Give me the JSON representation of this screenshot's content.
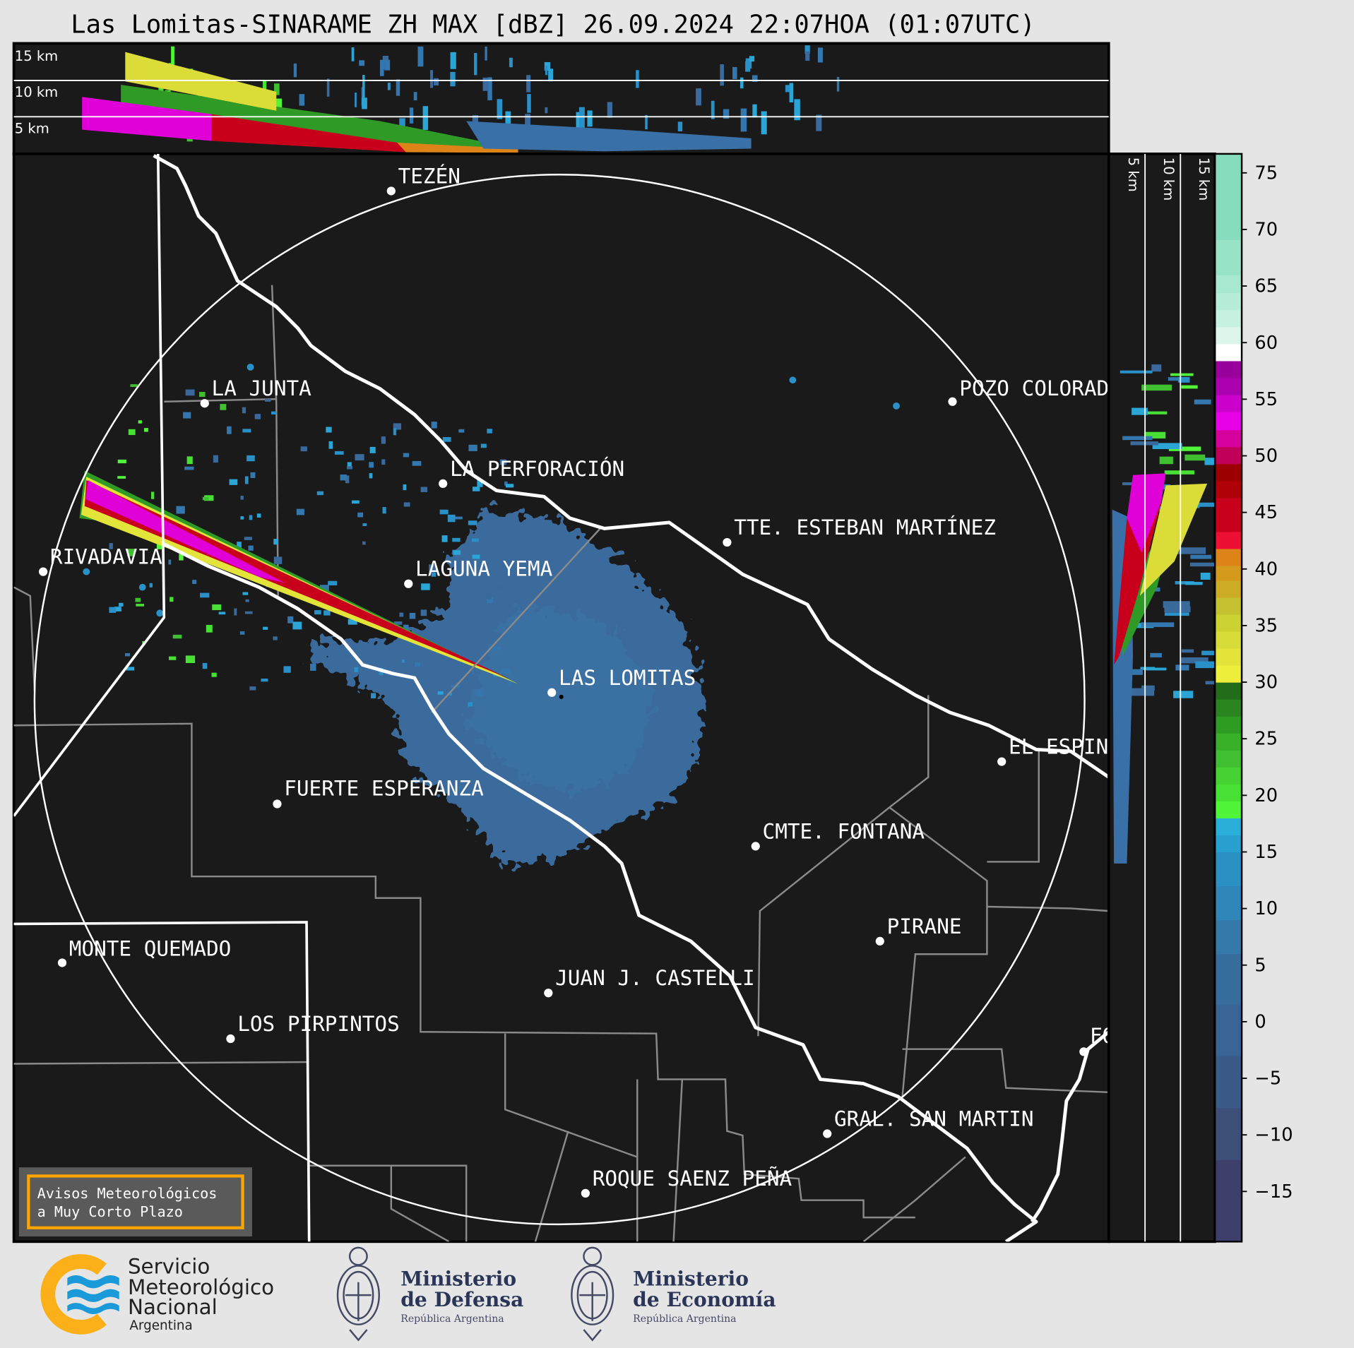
{
  "title": "Las Lomitas-SINARAME ZH MAX [dBZ] 26.09.2024 22:07HOA (01:07UTC)",
  "top_section": {
    "labels": [
      "15 km",
      "10 km",
      "5 km"
    ]
  },
  "side_section": {
    "labels": [
      "5 km",
      "10 km",
      "15 km"
    ]
  },
  "map": {
    "background": "#1a1a1a",
    "towns": [
      "TEZÉN",
      "LA JUNTA",
      "POZO COLORAD",
      "LA PERFORACIÓN",
      "TTE. ESTEBAN MARTÍNEZ",
      "RIVADAVIA",
      "LAGUNA YEMA",
      "LAS LOMITAS",
      "EL ESPIN",
      "FUERTE ESPERANZA",
      "CMTE. FONTANA",
      "PIRANE",
      "MONTE QUEMADO",
      "JUAN J. CASTELLI",
      "LOS PIRPINTOS",
      "FO",
      "GRAL. SAN MARTIN",
      "ROQUE SAENZ PEÑA"
    ]
  },
  "alert_box": {
    "line1": "Avisos Meteorológicos",
    "line2": "a Muy Corto Plazo",
    "accent": "#ffa500"
  },
  "colorbar": {
    "unit": "dBZ",
    "range": [
      -19.4,
      76.7
    ],
    "ticks": [
      "75",
      "70",
      "65",
      "60",
      "55",
      "50",
      "45",
      "40",
      "35",
      "30",
      "25",
      "20",
      "15",
      "10",
      "5",
      "0",
      "−5",
      "−10",
      "−15"
    ],
    "tick_values": [
      75,
      70,
      65,
      60,
      55,
      50,
      45,
      40,
      35,
      30,
      25,
      20,
      15,
      10,
      5,
      0,
      -5,
      -10,
      -15
    ],
    "bins": [
      [
        -19.4,
        -12.2,
        "#3d3f6a"
      ],
      [
        -12.2,
        -7.6,
        "#3d4e78"
      ],
      [
        -7.6,
        -3.0,
        "#3a5a88"
      ],
      [
        -3.0,
        1.5,
        "#3a6496"
      ],
      [
        1.5,
        6.0,
        "#376d9c"
      ],
      [
        6.0,
        9.0,
        "#3479aa"
      ],
      [
        9.0,
        12.0,
        "#3086b8"
      ],
      [
        12.0,
        15.0,
        "#2b90c2"
      ],
      [
        15.0,
        16.5,
        "#28a0d0"
      ],
      [
        16.5,
        18.0,
        "#2ab0d8"
      ],
      [
        18.0,
        19.5,
        "#50f53a"
      ],
      [
        19.5,
        21.0,
        "#48e034"
      ],
      [
        21.0,
        22.5,
        "#46d232"
      ],
      [
        22.5,
        24.0,
        "#40c030"
      ],
      [
        24.0,
        25.5,
        "#38b028"
      ],
      [
        25.5,
        27.0,
        "#2e9c22"
      ],
      [
        27.0,
        28.5,
        "#2a8520"
      ],
      [
        28.5,
        30.0,
        "#226c1a"
      ],
      [
        30.0,
        31.5,
        "#eeee3c"
      ],
      [
        31.5,
        33.0,
        "#e2e43a"
      ],
      [
        33.0,
        34.5,
        "#d8dc38"
      ],
      [
        34.5,
        36.0,
        "#ccd232"
      ],
      [
        36.0,
        37.5,
        "#c4c230"
      ],
      [
        37.5,
        39.0,
        "#ccac24"
      ],
      [
        39.0,
        40.3,
        "#d49a1c"
      ],
      [
        40.3,
        41.8,
        "#dc8418"
      ],
      [
        41.8,
        43.3,
        "#ee1034"
      ],
      [
        43.3,
        46.3,
        "#c8001c"
      ],
      [
        46.3,
        47.8,
        "#b00008"
      ],
      [
        47.8,
        49.3,
        "#9c0000"
      ],
      [
        49.3,
        50.8,
        "#c00058"
      ],
      [
        50.8,
        52.3,
        "#d6009c"
      ],
      [
        52.3,
        53.9,
        "#e800e8"
      ],
      [
        53.9,
        55.4,
        "#cc00cc"
      ],
      [
        55.4,
        56.9,
        "#aa00b0"
      ],
      [
        56.9,
        58.4,
        "#99009c"
      ],
      [
        58.4,
        59.9,
        "#ffffff"
      ],
      [
        59.9,
        61.4,
        "#def5ec"
      ],
      [
        61.4,
        62.9,
        "#c6f0e0"
      ],
      [
        62.9,
        64.4,
        "#b6ecd8"
      ],
      [
        64.4,
        66.0,
        "#a8e8d0"
      ],
      [
        66.0,
        69.1,
        "#98e2c6"
      ],
      [
        69.1,
        76.7,
        "#88dcbe"
      ]
    ]
  },
  "logos": {
    "smn": {
      "line1": "Servicio",
      "line2": "Meteorológico",
      "line3": "Nacional",
      "line4": "Argentina"
    },
    "defensa": {
      "line1": "Ministerio",
      "line2": "de Defensa",
      "line3": "República Argentina"
    },
    "economia": {
      "line1": "Ministerio",
      "line2": "de Economía",
      "line3": "República Argentina"
    }
  }
}
